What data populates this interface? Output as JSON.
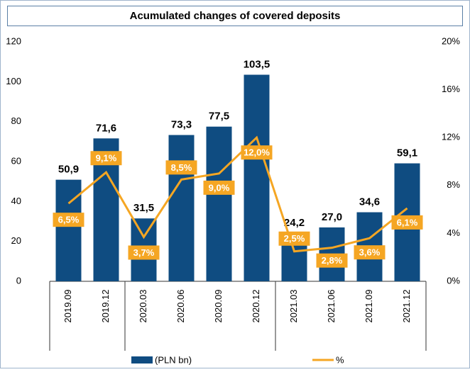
{
  "chart_data": {
    "type": "bar-line",
    "title": "Acumulated changes of covered deposits",
    "categories": [
      "2019.09",
      "2019.12",
      "2020.03",
      "2020.06",
      "2020.09",
      "2020.12",
      "2021.03",
      "2021.06",
      "2021.09",
      "2021.12"
    ],
    "series": [
      {
        "name": "(PLN bn)",
        "color": "#0f4c81",
        "type": "bar",
        "values": [
          50.9,
          71.6,
          31.5,
          73.3,
          77.5,
          103.5,
          24.2,
          27.0,
          34.6,
          59.1
        ],
        "value_labels": [
          "50,9",
          "71,6",
          "31,5",
          "73,3",
          "77,5",
          "103,5",
          "24,2",
          "27,0",
          "34,6",
          "59,1"
        ]
      },
      {
        "name": "%",
        "color": "#f5a623",
        "type": "line",
        "axis": "y2",
        "values": [
          6.5,
          9.1,
          3.7,
          8.5,
          9.0,
          12.0,
          2.5,
          2.8,
          3.6,
          6.1
        ],
        "value_labels": [
          "6,5%",
          "9,1%",
          "3,7%",
          "8,5%",
          "9,0%",
          "12,0%",
          "2,5%",
          "2,8%",
          "3,6%",
          "6,1%"
        ]
      }
    ],
    "ylim": [
      0,
      120
    ],
    "yticks": [
      0,
      20,
      40,
      60,
      80,
      100,
      120
    ],
    "y2lim": [
      0,
      20
    ],
    "y2ticks": [
      {
        "value": 0,
        "label": "0%"
      },
      {
        "value": 4,
        "label": "4%"
      },
      {
        "value": 8,
        "label": "8%"
      },
      {
        "value": 12,
        "label": "12%"
      },
      {
        "value": 16,
        "label": "16%"
      },
      {
        "value": 20,
        "label": "20%"
      }
    ]
  }
}
